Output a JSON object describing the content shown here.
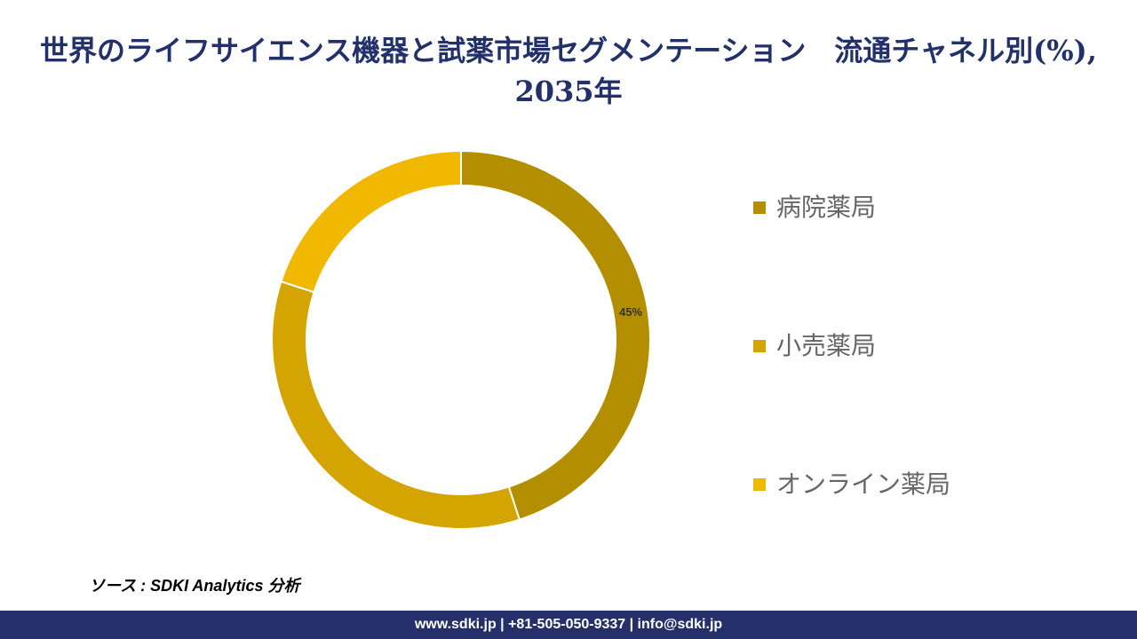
{
  "chart_data": {
    "type": "donut",
    "title": "世界のライフサイエンス機器と試薬市場セグメンテーション　流通チャネル別(%), 2035年",
    "categories": [
      "病院薬局",
      "小売薬局",
      "オンライン薬局"
    ],
    "values": [
      45,
      35,
      20
    ],
    "value_labels": [
      "45%",
      null,
      null
    ],
    "colors": [
      "#b38f00",
      "#d4a500",
      "#f0b800"
    ],
    "legend": "right"
  },
  "source": "ソース : SDKI Analytics 分析",
  "footer": "www.sdki.jp | +81-505-050-9337 | info@sdki.jp"
}
